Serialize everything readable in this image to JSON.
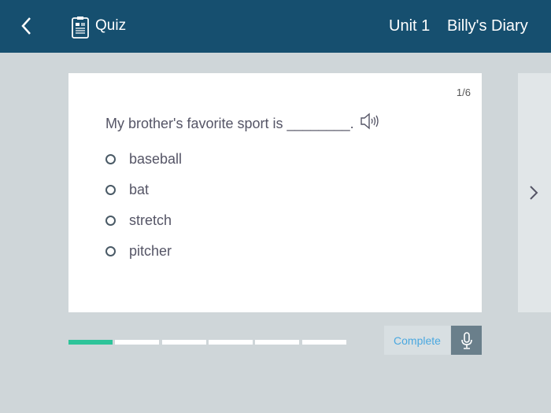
{
  "header": {
    "section": "Quiz",
    "unit": "Unit 1",
    "title": "Billy's Diary"
  },
  "question": {
    "counter": "1/6",
    "text": "My brother's favorite sport is ________.",
    "options": [
      "baseball",
      "bat",
      "stretch",
      "pitcher"
    ]
  },
  "progress": {
    "current": 1,
    "total": 6,
    "active_color": "#2ec49a"
  },
  "footer": {
    "complete_label": "Complete"
  }
}
